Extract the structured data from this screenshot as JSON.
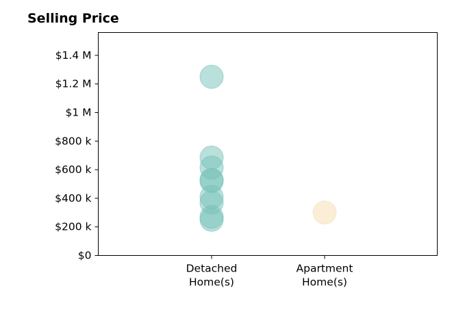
{
  "chart_data": {
    "type": "scatter",
    "title": "Selling Price",
    "xlabel": "",
    "ylabel": "",
    "categories": [
      "Detached\nHome(s)",
      "Apartment\nHome(s)"
    ],
    "ylim": [
      0,
      1560000
    ],
    "yticks": [
      0,
      200000,
      400000,
      600000,
      800000,
      1000000,
      1200000,
      1400000
    ],
    "ytick_labels": [
      "$0",
      "$200 k",
      "$400 k",
      "$600 k",
      "$800 k",
      "$1 M",
      "$1.2 M",
      "$1.4 M"
    ],
    "grid": false,
    "legend": "none",
    "series": [
      {
        "category": "Detached\nHome(s)",
        "color": "#76c2b7",
        "values": [
          1250000,
          685000,
          615000,
          530000,
          520000,
          410000,
          370000,
          270000,
          250000
        ]
      },
      {
        "category": "Apartment\nHome(s)",
        "color": "#f5deb0",
        "values": [
          300000
        ]
      }
    ]
  }
}
